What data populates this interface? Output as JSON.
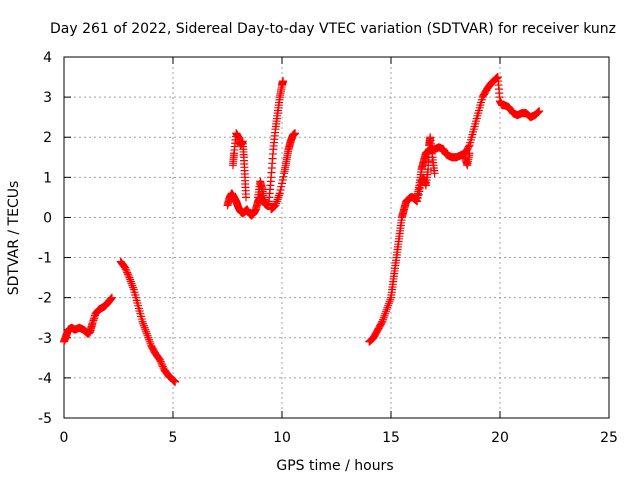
{
  "chart_data": {
    "type": "scatter",
    "title": "Day 261 of 2022, Sidereal Day-to-day VTEC variation (SDTVAR) for receiver kunz",
    "xlabel": "GPS time / hours",
    "ylabel": "SDTVAR / TECUs",
    "xlim": [
      0,
      25
    ],
    "ylim": [
      -5,
      4
    ],
    "xticks": [
      0,
      5,
      10,
      15,
      20,
      25
    ],
    "yticks": [
      -5,
      -4,
      -3,
      -2,
      -1,
      0,
      1,
      2,
      3,
      4
    ],
    "grid": true,
    "marker": "+",
    "color": "#ff0000",
    "segments": [
      {
        "x": [
          0.0,
          0.1,
          0.2,
          0.35,
          0.5,
          0.7,
          0.9,
          1.0,
          1.1,
          1.2,
          1.3,
          1.45,
          1.6,
          1.75,
          1.9,
          2.05,
          2.2
        ],
        "y": [
          -3.1,
          -2.95,
          -2.8,
          -2.75,
          -2.8,
          -2.75,
          -2.8,
          -2.85,
          -2.9,
          -2.85,
          -2.65,
          -2.4,
          -2.3,
          -2.25,
          -2.2,
          -2.1,
          -2.0
        ]
      },
      {
        "x": [
          2.6,
          2.8,
          3.0,
          3.2,
          3.4,
          3.6,
          3.8,
          4.0,
          4.2,
          4.4,
          4.6,
          4.8,
          5.0,
          5.1
        ],
        "y": [
          -1.1,
          -1.25,
          -1.5,
          -1.8,
          -2.2,
          -2.6,
          -2.9,
          -3.2,
          -3.4,
          -3.55,
          -3.8,
          -3.95,
          -4.05,
          -4.1
        ]
      },
      {
        "x": [
          7.5,
          7.6,
          7.7,
          7.8,
          7.9,
          8.0,
          8.1,
          8.2,
          8.3,
          8.4,
          8.5,
          8.6,
          8.7,
          8.8,
          8.9,
          9.0,
          9.1,
          9.2,
          9.3,
          9.4
        ],
        "y": [
          0.3,
          0.5,
          0.6,
          0.5,
          0.4,
          0.25,
          0.15,
          0.1,
          0.15,
          0.2,
          0.1,
          0.05,
          0.1,
          0.2,
          0.4,
          0.5,
          0.45,
          0.35,
          0.3,
          0.35
        ]
      },
      {
        "x": [
          7.75,
          7.8,
          7.9,
          8.0,
          8.1,
          8.2,
          8.25,
          8.3,
          8.35
        ],
        "y": [
          1.3,
          1.6,
          2.1,
          2.0,
          1.8,
          1.9,
          1.5,
          1.0,
          0.5
        ]
      },
      {
        "x": [
          8.9,
          9.0,
          9.1,
          9.2
        ],
        "y": [
          0.5,
          0.9,
          0.7,
          0.4
        ]
      },
      {
        "x": [
          9.4,
          9.5,
          9.6,
          9.7,
          9.8,
          9.9,
          10.0,
          10.05
        ],
        "y": [
          0.4,
          1.0,
          1.7,
          2.2,
          2.6,
          3.0,
          3.3,
          3.4
        ]
      },
      {
        "x": [
          9.5,
          9.7,
          9.9,
          10.1,
          10.2,
          10.3,
          10.4,
          10.5,
          10.6
        ],
        "y": [
          0.2,
          0.3,
          0.6,
          1.1,
          1.4,
          1.7,
          1.9,
          2.05,
          2.1
        ]
      },
      {
        "x": [
          14.0,
          14.2,
          14.4,
          14.6,
          14.8,
          15.0,
          15.1,
          15.2,
          15.3,
          15.4,
          15.5,
          15.6,
          15.7,
          15.8,
          15.9,
          16.0,
          16.1,
          16.2,
          16.3,
          16.4,
          16.5,
          16.6,
          16.7,
          16.8,
          17.0,
          17.2,
          17.4,
          17.5,
          17.6,
          17.8,
          18.0,
          18.2,
          18.4,
          18.6,
          18.8,
          19.0,
          19.2,
          19.4,
          19.6,
          19.8,
          19.9,
          20.0,
          20.1,
          20.2,
          20.4,
          20.6,
          20.8,
          21.0,
          21.2,
          21.4,
          21.6,
          21.8
        ],
        "y": [
          -3.1,
          -3.0,
          -2.8,
          -2.6,
          -2.3,
          -2.0,
          -1.6,
          -1.2,
          -0.8,
          -0.4,
          0.0,
          0.2,
          0.4,
          0.45,
          0.5,
          0.5,
          0.45,
          0.5,
          0.8,
          1.2,
          1.4,
          1.6,
          1.65,
          1.7,
          1.7,
          1.75,
          1.7,
          1.6,
          1.55,
          1.5,
          1.5,
          1.55,
          1.6,
          1.8,
          2.2,
          2.6,
          3.0,
          3.2,
          3.35,
          3.45,
          3.5,
          2.9,
          2.8,
          2.8,
          2.75,
          2.6,
          2.55,
          2.6,
          2.6,
          2.5,
          2.55,
          2.65
        ]
      },
      {
        "x": [
          16.0,
          16.2,
          16.4,
          16.5,
          16.6,
          16.7,
          16.75,
          16.8,
          16.9,
          17.0
        ],
        "y": [
          0.5,
          0.4,
          0.9,
          1.0,
          0.8,
          1.2,
          1.8,
          2.0,
          1.5,
          1.1
        ]
      },
      {
        "x": [
          18.4,
          18.5,
          18.6
        ],
        "y": [
          1.5,
          1.3,
          1.6
        ]
      }
    ]
  }
}
